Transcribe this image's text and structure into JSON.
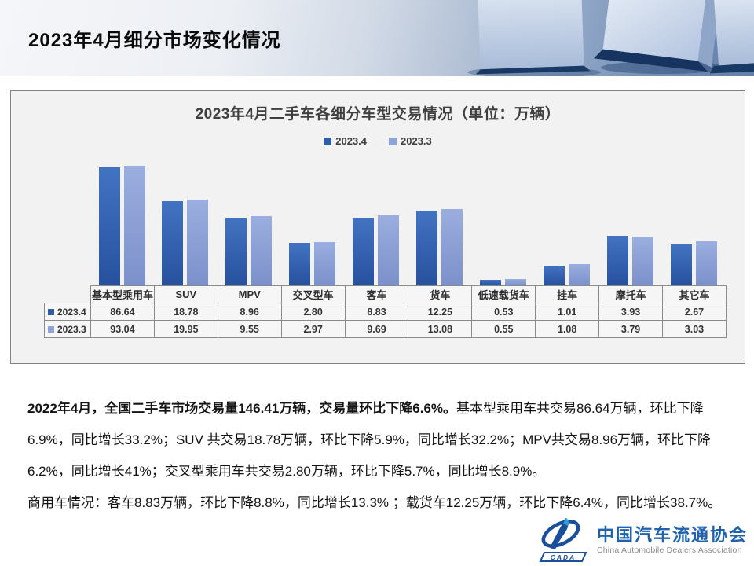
{
  "slide": {
    "title": "2023年4月细分市场变化情况"
  },
  "chart": {
    "title": "2023年4月二手车各细分车型交易情况（单位：万辆）",
    "panel_bg": "#f2f2f2"
  },
  "chart_data": {
    "type": "bar",
    "title": "2023年4月二手车各细分车型交易情况（单位：万辆）",
    "unit": "万辆",
    "yscale": "log",
    "grid": false,
    "legend_position": "top",
    "value_table_shown": true,
    "categories": [
      "基本型乘用车",
      "SUV",
      "MPV",
      "交叉型车",
      "客车",
      "货车",
      "低速载货车",
      "挂车",
      "摩托车",
      "其它车"
    ],
    "series": [
      {
        "name": "2023.4",
        "legend_color": "#305ca8",
        "grad_top": "#4273c1",
        "grad_bottom": "#27519f",
        "values": [
          "86.64",
          "18.78",
          "8.96",
          "2.80",
          "8.83",
          "12.25",
          "0.53",
          "1.01",
          "3.93",
          "2.67"
        ]
      },
      {
        "name": "2023.3",
        "legend_color": "#8ea3da",
        "grad_top": "#9baedf",
        "grad_bottom": "#7c90cb",
        "values": [
          "93.04",
          "19.95",
          "9.55",
          "2.97",
          "9.69",
          "13.08",
          "0.55",
          "1.08",
          "3.79",
          "3.03"
        ]
      }
    ]
  },
  "body": {
    "p1_bold": "2022年4月，全国二手车市场交易量146.41万辆，交易量环比下降6.6%。",
    "p1_rest": "基本型乘用车共交易86.64万辆，环比下降6.9%，同比增长33.2%；SUV 共交易18.78万辆，环比下降5.9%，同比增长32.2%；MPV共交易8.96万辆，环比下降6.2%，同比增长41%；交叉型乘用车共交易2.80万辆，环比下降5.7%，同比增长8.9%。",
    "p2": "商用车情况：客车8.83万辆，环比下降8.8%，同比增长13.3% ；载货车12.25万辆，环比下降6.4%，同比增长38.7%。"
  },
  "logo": {
    "cn": "中国汽车流通协会",
    "en": "China Automobile Dealers Association",
    "badge": "CADA",
    "blue": "#1b4e9b",
    "cyan": "#2ba0d8"
  }
}
